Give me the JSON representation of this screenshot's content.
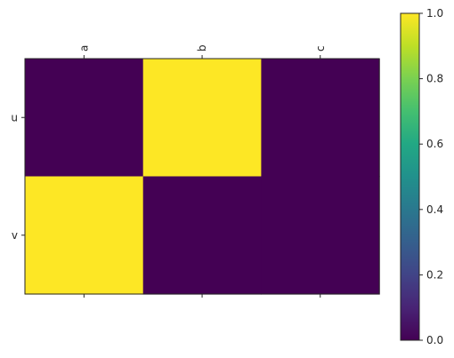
{
  "chart_data": {
    "type": "heatmap",
    "title": "",
    "xlabel": "",
    "ylabel": "",
    "x": [
      "a",
      "b",
      "c"
    ],
    "y": [
      "u",
      "v"
    ],
    "values": [
      [
        0,
        1,
        0
      ],
      [
        1,
        0,
        0
      ]
    ],
    "colorbar": {
      "range": [
        0,
        1
      ],
      "ticks": [
        "0.0",
        "0.2",
        "0.4",
        "0.6",
        "0.8",
        "1.0"
      ],
      "colormap": "viridis",
      "low_color": "#440154",
      "high_color": "#fde725"
    },
    "x_tick_position": "top",
    "x_tick_rotation": "vertical",
    "grid": false
  }
}
